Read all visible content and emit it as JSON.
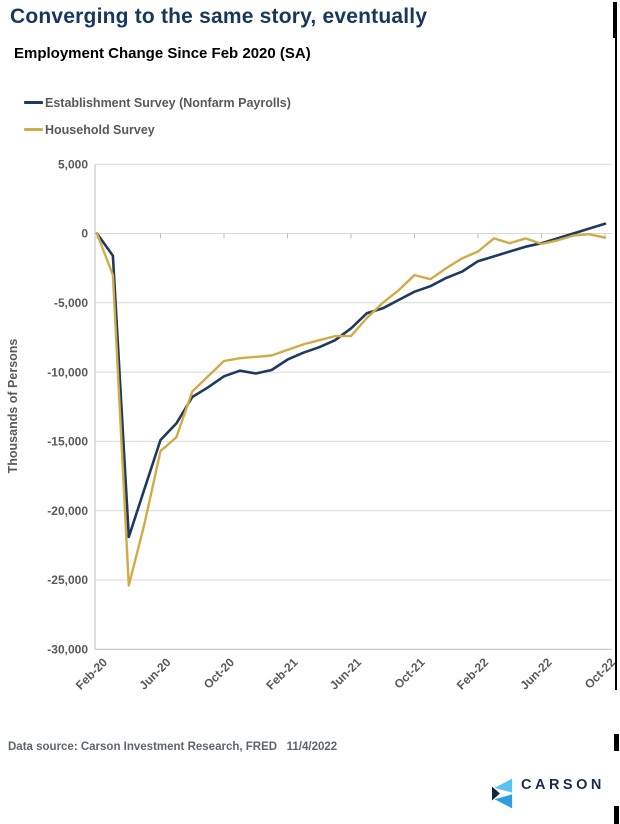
{
  "page": {
    "title": "Converging to the same story, eventually"
  },
  "footer": {
    "text": "Data source: Carson Investment Research, FRED   11/4/2022"
  },
  "logo": {
    "text": "CARSON",
    "mark_colors": {
      "light_blue": "#5bc2f0",
      "blue": "#2f9ddc",
      "navy": "#12263f"
    },
    "text_color": "#1b2b4d"
  },
  "colors": {
    "title_navy": "#17375d",
    "establishment_line": "#1e3a5f",
    "household_line": "#d1ab45",
    "axis_text": "#595959",
    "gridline": "#d9d9d9",
    "axis_line": "#bfbfbf"
  },
  "chart_data": {
    "type": "line",
    "title": "Employment Change Since Feb 2020 (SA)",
    "xlabel": "",
    "ylabel": "Thousands of Persons",
    "ylim": [
      -30000,
      5000
    ],
    "grid": true,
    "legend_position": "top-left",
    "y_ticks": [
      5000,
      0,
      -5000,
      -10000,
      -15000,
      -20000,
      -25000,
      -30000
    ],
    "y_tick_labels": [
      "5,000",
      "0",
      "-5,000",
      "-10,000",
      "-15,000",
      "-20,000",
      "-25,000",
      "-30,000"
    ],
    "x_tick_labels": [
      "Feb-20",
      "Jun-20",
      "Oct-20",
      "Feb-21",
      "Jun-21",
      "Oct-21",
      "Feb-22",
      "Jun-22",
      "Oct-22"
    ],
    "x": [
      "Feb-20",
      "Mar-20",
      "Apr-20",
      "May-20",
      "Jun-20",
      "Jul-20",
      "Aug-20",
      "Sep-20",
      "Oct-20",
      "Nov-20",
      "Dec-20",
      "Jan-21",
      "Feb-21",
      "Mar-21",
      "Apr-21",
      "May-21",
      "Jun-21",
      "Jul-21",
      "Aug-21",
      "Sep-21",
      "Oct-21",
      "Nov-21",
      "Dec-21",
      "Jan-22",
      "Feb-22",
      "Mar-22",
      "Apr-22",
      "May-22",
      "Jun-22",
      "Jul-22",
      "Aug-22",
      "Sep-22",
      "Oct-22"
    ],
    "series": [
      {
        "name": "Establishment Survey (Nonfarm Payrolls)",
        "color": "#1e3a5f",
        "values": [
          0,
          -1600,
          -21900,
          -18400,
          -14900,
          -13700,
          -11800,
          -11100,
          -10300,
          -9900,
          -10100,
          -9850,
          -9100,
          -8600,
          -8200,
          -7700,
          -6850,
          -5750,
          -5400,
          -4800,
          -4200,
          -3800,
          -3200,
          -2750,
          -2000,
          -1650,
          -1300,
          -950,
          -700,
          -350,
          0,
          350,
          700
        ]
      },
      {
        "name": "Household Survey",
        "color": "#d1ab45",
        "values": [
          0,
          -3000,
          -25400,
          -20900,
          -15700,
          -14700,
          -11400,
          -10300,
          -9200,
          -9000,
          -8900,
          -8800,
          -8400,
          -8000,
          -7700,
          -7400,
          -7400,
          -6100,
          -5000,
          -4100,
          -3000,
          -3300,
          -2500,
          -1800,
          -1300,
          -350,
          -700,
          -350,
          -750,
          -500,
          -150,
          -50,
          -300
        ]
      }
    ]
  }
}
